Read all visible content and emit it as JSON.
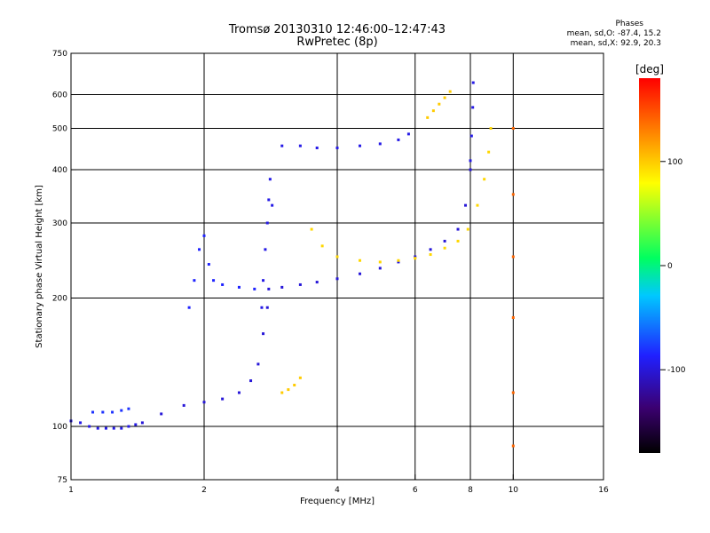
{
  "header": {
    "title_line1": "Tromsø 20130310 12:46:00–12:47:43",
    "title_line2": "RwPretec (8p)",
    "stats_title": "Phases",
    "stats_o": "mean, sd,O: -87.4, 15.2",
    "stats_x": "mean, sd,X:  92.9, 20.3"
  },
  "colorbar": {
    "unit_label": "[deg]",
    "ticks": [
      {
        "label": "100",
        "value": 100
      },
      {
        "label": "0",
        "value": 0
      },
      {
        "label": "-100",
        "value": -100
      }
    ],
    "range": [
      -180,
      180
    ],
    "colors": [
      "#000000",
      "#3b0070",
      "#2020ff",
      "#00c8ff",
      "#00ff60",
      "#ffff00",
      "#ff8000",
      "#ff0000"
    ]
  },
  "chart_data": {
    "type": "scatter",
    "title": "Tromsø 20130310 12:46:00–12:47:43",
    "subtitle": "RwPretec (8p)",
    "xlabel": "Frequency [MHz]",
    "ylabel": "Stationary phase Virtual Height [km]",
    "x_scale": "log",
    "y_scale": "log",
    "xlim": [
      1,
      16
    ],
    "ylim": [
      75,
      750
    ],
    "x_ticks": [
      {
        "label": "1",
        "value": 1
      },
      {
        "label": "2",
        "value": 2
      },
      {
        "label": "4",
        "value": 4
      },
      {
        "label": "6",
        "value": 6
      },
      {
        "label": "8",
        "value": 8
      },
      {
        "label": "10",
        "value": 10
      },
      {
        "label": "16",
        "value": 16
      }
    ],
    "y_ticks": [
      {
        "label": "75",
        "value": 75
      },
      {
        "label": "100",
        "value": 100
      },
      {
        "label": "200",
        "value": 200
      },
      {
        "label": "300",
        "value": 300
      },
      {
        "label": "400",
        "value": 400
      },
      {
        "label": "500",
        "value": 500
      },
      {
        "label": "600",
        "value": 600
      },
      {
        "label": "750",
        "value": 750
      }
    ],
    "grid_x": [
      2,
      4,
      6,
      8,
      10
    ],
    "grid_y": [
      100,
      200,
      300,
      400,
      500,
      600
    ],
    "color_scale": "phase [deg]",
    "series": [
      {
        "x": [
          1.0,
          1.05,
          1.1,
          1.15,
          1.2,
          1.25,
          1.3,
          1.35,
          1.4
        ],
        "y": [
          103,
          102,
          100,
          99,
          99,
          99,
          99,
          100,
          101
        ],
        "phase": -95
      },
      {
        "x": [
          1.12,
          1.18,
          1.24,
          1.3,
          1.35
        ],
        "y": [
          108,
          108,
          108,
          109,
          110
        ],
        "phase": -80
      },
      {
        "x": [
          1.45,
          1.6,
          1.8,
          2.0,
          2.2,
          2.4,
          2.55,
          2.65,
          2.72,
          2.78
        ],
        "y": [
          102,
          107,
          112,
          114,
          116,
          120,
          128,
          140,
          165,
          190
        ],
        "phase": -100
      },
      {
        "x": [
          2.7,
          2.72,
          2.75,
          2.78,
          2.8,
          2.82,
          2.85
        ],
        "y": [
          190,
          220,
          260,
          300,
          340,
          380,
          330
        ],
        "phase": -95
      },
      {
        "x": [
          1.85,
          1.9,
          1.95,
          2.0,
          2.05,
          2.1,
          2.2,
          2.4,
          2.6
        ],
        "y": [
          190,
          220,
          260,
          280,
          240,
          220,
          215,
          212,
          210
        ],
        "phase": -85
      },
      {
        "x": [
          2.8,
          3.0,
          3.3,
          3.6,
          4.0,
          4.5,
          5.0,
          5.5,
          6.0,
          6.5,
          7.0,
          7.5,
          7.8,
          8.0
        ],
        "y": [
          210,
          212,
          215,
          218,
          222,
          228,
          235,
          243,
          250,
          260,
          272,
          290,
          330,
          400
        ],
        "phase": -100
      },
      {
        "x": [
          8.0,
          8.05,
          8.1,
          8.12
        ],
        "y": [
          420,
          480,
          560,
          640
        ],
        "phase": -95
      },
      {
        "x": [
          3.0,
          3.3,
          3.6,
          4.0,
          4.5,
          5.0,
          5.5,
          5.8
        ],
        "y": [
          455,
          455,
          450,
          450,
          455,
          460,
          470,
          485
        ],
        "phase": -95
      },
      {
        "x": [
          3.5,
          3.7,
          4.0,
          4.5,
          5.0,
          5.5,
          6.0,
          6.5,
          7.0,
          7.5,
          7.9,
          8.3,
          8.6,
          8.8,
          8.9
        ],
        "y": [
          290,
          265,
          250,
          245,
          243,
          245,
          248,
          253,
          262,
          272,
          290,
          330,
          380,
          440,
          500
        ],
        "phase": 95
      },
      {
        "x": [
          6.4,
          6.6,
          6.8,
          7.0,
          7.2
        ],
        "y": [
          530,
          550,
          570,
          590,
          610
        ],
        "phase": 100
      },
      {
        "x": [
          3.0,
          3.1,
          3.2,
          3.3
        ],
        "y": [
          120,
          122,
          125,
          130
        ],
        "phase": 100
      },
      {
        "x": [
          10.0,
          10.0,
          10.0,
          10.0,
          10.0,
          10.0
        ],
        "y": [
          90,
          120,
          180,
          250,
          350,
          500
        ],
        "phase": 140
      }
    ]
  }
}
